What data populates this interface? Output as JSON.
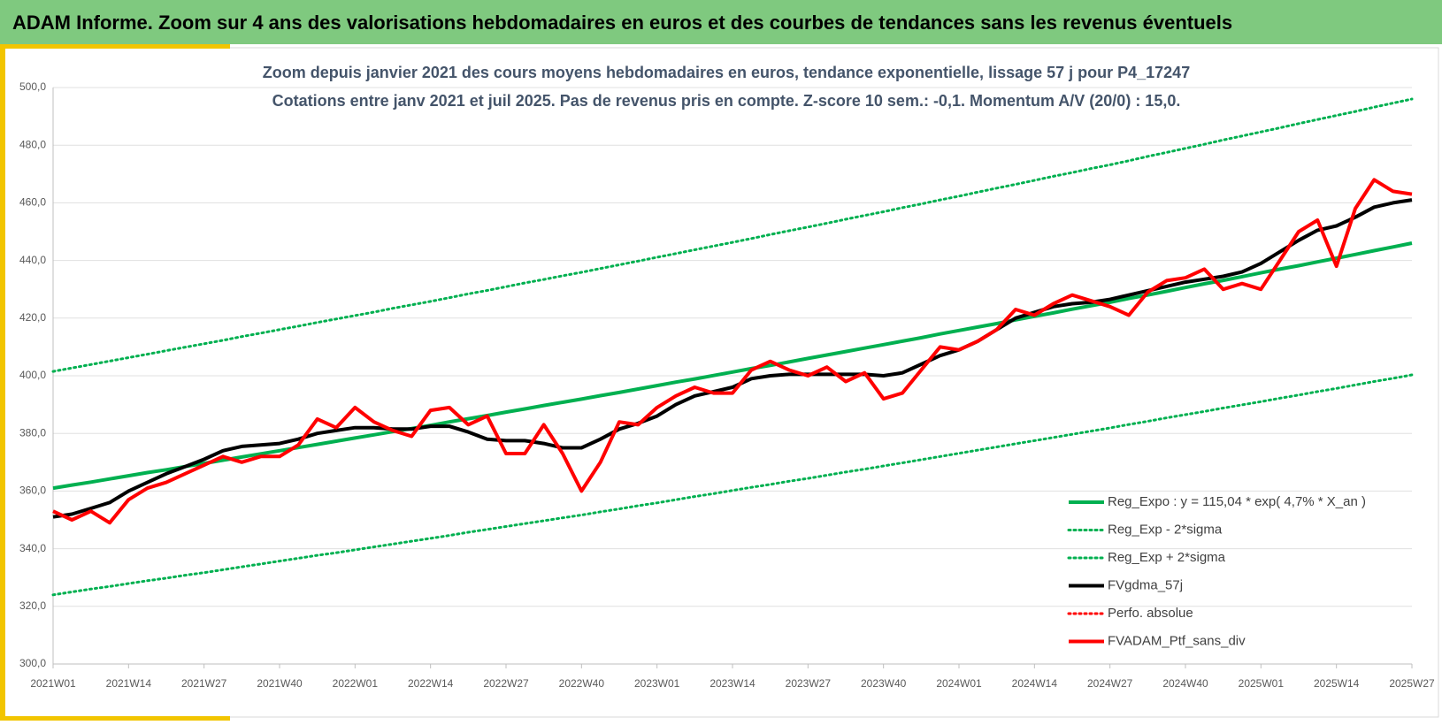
{
  "chart_data": {
    "type": "line",
    "header": "ADAM Informe. Zoom sur 4 ans des valorisations hebdomadaires en euros et des courbes de tendances sans les revenus éventuels",
    "title": "Zoom depuis janvier 2021 des cours moyens hebdomadaires  en euros, tendance exponentielle, lissage 57 j pour P4_17247",
    "subtitle": "Cotations entre janv 2021 et juil 2025. Pas de revenus pris en compte. Z-score 10 sem.: -0,1. Momentum A/V (20/0) : 15,0.",
    "categories": [
      "2021W01",
      null,
      null,
      null,
      "2021W14",
      null,
      null,
      null,
      "2021W27",
      null,
      null,
      null,
      "2021W40",
      null,
      null,
      null,
      "2022W01",
      null,
      null,
      null,
      "2022W14",
      null,
      null,
      null,
      "2022W27",
      null,
      null,
      null,
      "2022W40",
      null,
      null,
      null,
      "2023W01",
      null,
      null,
      null,
      "2023W14",
      null,
      null,
      null,
      "2023W27",
      null,
      null,
      null,
      "2023W40",
      null,
      null,
      null,
      "2024W01",
      null,
      null,
      null,
      "2024W14",
      null,
      null,
      null,
      "2024W27",
      null,
      null,
      null,
      "2024W40",
      null,
      null,
      null,
      "2025W01",
      null,
      null,
      null,
      "2025W14",
      null,
      null,
      null,
      "2025W27"
    ],
    "ylim": [
      300,
      500
    ],
    "yticks": [
      {
        "value": 300,
        "label": "300,0"
      },
      {
        "value": 320,
        "label": "320,0"
      },
      {
        "value": 340,
        "label": "340,0"
      },
      {
        "value": 360,
        "label": "360,0"
      },
      {
        "value": 380,
        "label": "380,0"
      },
      {
        "value": 400,
        "label": "400,0"
      },
      {
        "value": 420,
        "label": "420,0"
      },
      {
        "value": 440,
        "label": "440,0"
      },
      {
        "value": 460,
        "label": "460,0"
      },
      {
        "value": 480,
        "label": "480,0"
      },
      {
        "value": 500,
        "label": "500,0"
      }
    ],
    "grid": true,
    "legend": "bottom-right",
    "series": [
      {
        "name": "Reg_Expo : y = 115,04 * exp( 4,7% *  X_an )",
        "color": "#00b050",
        "style": "solid",
        "values": [
          361.0,
          362.1,
          363.1,
          364.2,
          365.3,
          366.4,
          367.4,
          368.5,
          369.6,
          370.7,
          371.8,
          372.9,
          374.0,
          375.1,
          376.2,
          377.3,
          378.4,
          379.5,
          380.6,
          381.7,
          382.8,
          384.0,
          385.1,
          386.2,
          387.4,
          388.5,
          389.7,
          390.8,
          391.9,
          393.1,
          394.2,
          395.4,
          396.6,
          397.8,
          398.9,
          400.1,
          401.3,
          402.5,
          403.6,
          404.8,
          406.0,
          407.2,
          408.4,
          409.6,
          410.8,
          412.0,
          413.2,
          414.5,
          415.7,
          416.9,
          418.1,
          419.4,
          420.6,
          421.8,
          423.1,
          424.3,
          425.5,
          426.8,
          428.0,
          429.3,
          430.6,
          431.9,
          433.1,
          434.4,
          435.7,
          437.0,
          438.2,
          439.5,
          440.8,
          442.1,
          443.4,
          444.7,
          446.0
        ]
      },
      {
        "name": "Reg_Exp - 2*sigma",
        "color": "#00b050",
        "style": "dotted",
        "values": [
          324.0,
          325.0,
          326.0,
          326.9,
          327.9,
          328.9,
          329.8,
          330.8,
          331.7,
          332.7,
          333.7,
          334.7,
          335.7,
          336.7,
          337.7,
          338.6,
          339.6,
          340.6,
          341.6,
          342.6,
          343.6,
          344.6,
          345.7,
          346.7,
          347.7,
          348.7,
          349.7,
          350.7,
          351.7,
          352.8,
          353.8,
          354.9,
          355.9,
          357.0,
          358.1,
          359.1,
          360.2,
          361.3,
          362.3,
          363.4,
          364.4,
          365.5,
          366.6,
          367.6,
          368.7,
          369.8,
          370.9,
          372.0,
          373.1,
          374.2,
          375.3,
          376.4,
          377.5,
          378.6,
          379.7,
          380.8,
          381.9,
          383.1,
          384.2,
          385.4,
          386.5,
          387.6,
          388.8,
          389.9,
          391.0,
          392.2,
          393.3,
          394.5,
          395.6,
          396.8,
          398.0,
          399.1,
          400.3
        ]
      },
      {
        "name": "Reg_Exp + 2*sigma",
        "color": "#00b050",
        "style": "dotted",
        "values": [
          401.5,
          402.7,
          403.9,
          405.1,
          406.3,
          407.5,
          408.7,
          409.9,
          411.1,
          412.3,
          413.6,
          414.8,
          416.0,
          417.2,
          418.5,
          419.7,
          420.9,
          422.1,
          423.4,
          424.6,
          425.8,
          427.1,
          428.4,
          429.6,
          430.9,
          432.2,
          433.4,
          434.7,
          435.9,
          437.2,
          438.5,
          439.8,
          441.1,
          442.4,
          443.7,
          445.0,
          446.3,
          447.6,
          449.0,
          450.3,
          451.6,
          452.9,
          454.3,
          455.6,
          456.9,
          458.3,
          459.6,
          461.0,
          462.3,
          463.7,
          465.1,
          466.4,
          467.8,
          469.2,
          470.5,
          471.9,
          473.2,
          474.6,
          476.1,
          477.5,
          478.9,
          480.3,
          481.8,
          483.2,
          484.6,
          486.0,
          487.5,
          488.9,
          490.3,
          491.7,
          493.2,
          494.6,
          496.0
        ]
      },
      {
        "name": "FVgdma_57j",
        "color": "#000000",
        "style": "solid",
        "values": [
          351,
          352,
          354,
          356,
          360,
          363,
          366,
          368.5,
          371,
          374,
          375.5,
          376,
          376.5,
          378,
          380,
          381,
          382,
          382,
          381.5,
          381.5,
          382.5,
          382.5,
          380.5,
          378,
          377.5,
          377.5,
          376.5,
          375,
          375,
          378,
          381.5,
          383.5,
          386,
          390,
          393,
          394.5,
          396,
          399,
          400,
          400.5,
          400.5,
          400.5,
          400.5,
          400.5,
          400,
          401,
          404,
          407,
          409,
          412,
          416,
          420,
          422,
          424,
          425,
          425.5,
          426.5,
          428,
          429.5,
          431,
          432.5,
          433.5,
          434.5,
          436,
          439,
          443,
          447,
          450.5,
          452,
          455,
          458.5,
          460,
          461
        ]
      },
      {
        "name": "Perfo. absolue",
        "color": "#ff0000",
        "style": "dotted",
        "values": [
          null,
          null,
          null,
          null,
          null,
          null,
          null,
          null,
          null,
          null,
          null,
          null,
          null,
          null,
          null,
          null,
          null,
          null,
          null,
          null,
          null,
          null,
          null,
          null,
          null,
          null,
          null,
          null,
          null,
          null,
          null,
          null,
          null,
          null,
          null,
          null,
          null,
          null,
          null,
          null,
          null,
          null,
          null,
          null,
          null,
          null,
          null,
          null,
          null,
          null,
          null,
          null,
          null,
          null,
          null,
          null,
          null,
          null,
          null,
          null,
          null,
          null,
          null,
          null,
          null,
          null,
          null,
          null,
          null,
          null,
          null,
          null,
          null
        ]
      },
      {
        "name": "FVADAM_Ptf_sans_div",
        "color": "#ff0000",
        "style": "solid",
        "values": [
          353,
          350,
          353,
          349,
          357,
          361,
          363,
          366,
          369,
          372,
          370,
          372,
          372,
          376,
          385,
          382,
          389,
          384,
          381,
          379,
          388,
          389,
          383,
          386,
          373,
          373,
          383,
          373,
          360,
          370,
          384,
          383,
          389,
          393,
          396,
          394,
          394,
          402,
          405,
          402,
          400,
          403,
          398,
          401,
          392,
          394,
          402,
          410,
          409,
          412,
          416,
          423,
          421,
          425,
          428,
          426,
          424,
          421,
          429,
          433,
          434,
          437,
          430,
          432,
          430,
          440,
          450,
          454,
          438,
          458,
          468,
          464,
          463
        ]
      }
    ]
  }
}
